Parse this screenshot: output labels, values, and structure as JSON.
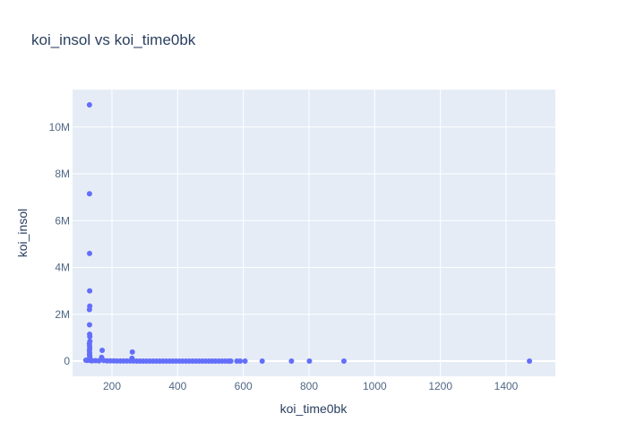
{
  "chart_data": {
    "type": "scatter",
    "title": "koi_insol vs koi_time0bk",
    "xlabel": "koi_time0bk",
    "ylabel": "koi_insol",
    "xlim": [
      80,
      1550
    ],
    "ylim": [
      -650000,
      11600000
    ],
    "x_ticks": [
      200,
      400,
      600,
      800,
      1000,
      1200,
      1400
    ],
    "x_tick_labels": [
      "200",
      "400",
      "600",
      "800",
      "1000",
      "1200",
      "1400"
    ],
    "y_ticks": [
      0,
      2000000,
      4000000,
      6000000,
      8000000,
      10000000
    ],
    "y_tick_labels": [
      "0",
      "2M",
      "4M",
      "6M",
      "8M",
      "10M"
    ],
    "grid": true,
    "marker_color": "#636efa",
    "plot_background": "#e5ecf6",
    "series": [
      {
        "x": [
          131.5,
          131.6,
          131.8,
          132.1,
          132.4,
          131.4,
          131.7,
          132.0,
          132.5,
          132.8,
          131.3,
          131.9,
          132.2,
          131.5,
          132.0,
          131.6,
          132.3,
          132.6,
          131.8,
          132.1,
          170.2,
          168.5,
          262.0,
          261.0,
          262.5,
          120.5,
          125.2,
          131.0,
          135.5,
          140.1,
          150.3,
          160.4,
          175.0,
          185.2,
          195.1,
          205.3,
          215.2,
          225.4,
          235.1,
          245.2,
          255.3,
          265.1,
          275.4,
          285.2,
          295.3,
          305.1,
          315.2,
          325.3,
          335.1,
          345.2,
          355.3,
          365.1,
          375.2,
          385.3,
          395.1,
          405.2,
          415.3,
          425.1,
          435.2,
          445.3,
          455.1,
          465.2,
          475.3,
          485.1,
          495.2,
          505.3,
          515.1,
          525.2,
          535.3,
          545.1,
          555.2,
          562.0,
          580.3,
          590.1,
          605.2,
          657.4,
          746.5,
          801.2,
          906.3,
          1471.2
        ],
        "y": [
          10950000,
          7150000,
          4600000,
          3000000,
          2350000,
          2200000,
          1550000,
          1150000,
          1050000,
          850000,
          750000,
          650000,
          550000,
          450000,
          350000,
          280000,
          220000,
          160000,
          120000,
          90000,
          460000,
          160000,
          390000,
          120000,
          60000,
          40000,
          30000,
          50000,
          20000,
          15000,
          18000,
          12000,
          25000,
          10000,
          8000,
          9000,
          7000,
          6000,
          5000,
          4500,
          4000,
          3500,
          3000,
          2800,
          2500,
          2300,
          2100,
          2000,
          1800,
          1700,
          1600,
          1500,
          1400,
          1300,
          1200,
          1100,
          1000,
          950,
          900,
          850,
          800,
          750,
          700,
          650,
          600,
          550,
          500,
          450,
          420,
          400,
          380,
          350,
          300,
          280,
          250,
          200,
          180,
          160,
          140,
          120
        ]
      }
    ]
  }
}
